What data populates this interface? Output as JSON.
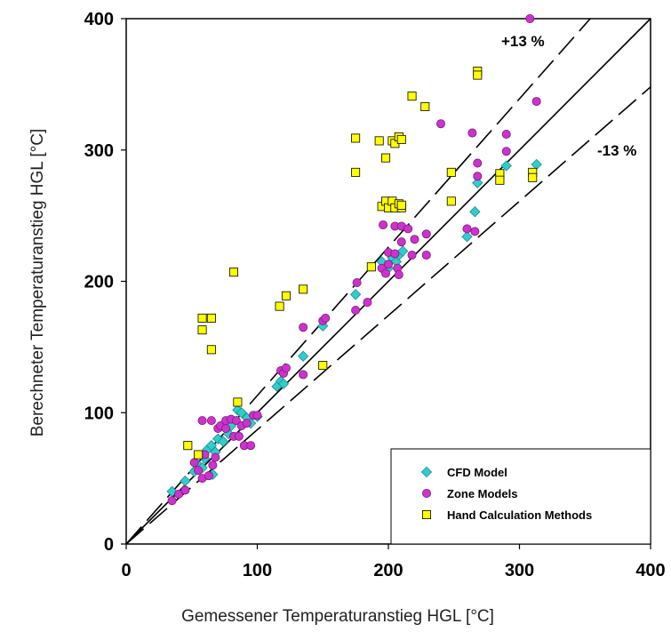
{
  "chart_data": {
    "type": "scatter",
    "xlabel": "Gemessener Temperaturanstieg HGL [°C]",
    "ylabel": "Berechneter Temperaturanstieg HGL [°C]",
    "xlim": [
      0,
      400
    ],
    "ylim": [
      0,
      400
    ],
    "xticks": [
      "0",
      "100",
      "200",
      "300",
      "400"
    ],
    "yticks": [
      "0",
      "100",
      "200",
      "300",
      "400"
    ],
    "grid": false,
    "legend_position": "bottom-right",
    "annotations": [
      {
        "text": "+13 %",
        "line_slope": 1.13
      },
      {
        "text": "-13 %",
        "line_slope": 0.87
      }
    ],
    "reference_lines": [
      {
        "slope": 1.0,
        "style": "solid"
      },
      {
        "slope": 1.13,
        "style": "dashed"
      },
      {
        "slope": 0.87,
        "style": "dashed"
      }
    ],
    "series": [
      {
        "name": "CFD Model",
        "marker": "diamond",
        "color": "#33cccc",
        "points": [
          [
            35,
            40
          ],
          [
            45,
            48
          ],
          [
            52,
            55
          ],
          [
            55,
            60
          ],
          [
            58,
            58
          ],
          [
            60,
            65
          ],
          [
            62,
            72
          ],
          [
            65,
            75
          ],
          [
            66,
            53
          ],
          [
            68,
            70
          ],
          [
            70,
            80
          ],
          [
            74,
            78
          ],
          [
            78,
            84
          ],
          [
            80,
            90
          ],
          [
            85,
            102
          ],
          [
            88,
            100
          ],
          [
            92,
            96
          ],
          [
            95,
            92
          ],
          [
            100,
            97
          ],
          [
            115,
            120
          ],
          [
            118,
            124
          ],
          [
            120,
            122
          ],
          [
            135,
            143
          ],
          [
            150,
            166
          ],
          [
            175,
            190
          ],
          [
            195,
            215
          ],
          [
            200,
            210
          ],
          [
            203,
            218
          ],
          [
            206,
            215
          ],
          [
            208,
            220
          ],
          [
            211,
            223
          ],
          [
            260,
            234
          ],
          [
            266,
            253
          ],
          [
            268,
            275
          ],
          [
            290,
            288
          ],
          [
            313,
            289
          ]
        ]
      },
      {
        "name": "Zone Models",
        "marker": "circle",
        "color": "#cc33cc",
        "points": [
          [
            35,
            33
          ],
          [
            40,
            38
          ],
          [
            45,
            41
          ],
          [
            52,
            62
          ],
          [
            55,
            56
          ],
          [
            58,
            50
          ],
          [
            58,
            94
          ],
          [
            60,
            68
          ],
          [
            63,
            52
          ],
          [
            65,
            94
          ],
          [
            66,
            60
          ],
          [
            68,
            66
          ],
          [
            70,
            88
          ],
          [
            72,
            90
          ],
          [
            76,
            88
          ],
          [
            76,
            94
          ],
          [
            80,
            95
          ],
          [
            82,
            82
          ],
          [
            84,
            94
          ],
          [
            86,
            82
          ],
          [
            88,
            90
          ],
          [
            90,
            75
          ],
          [
            92,
            92
          ],
          [
            95,
            75
          ],
          [
            97,
            98
          ],
          [
            100,
            98
          ],
          [
            118,
            132
          ],
          [
            120,
            130
          ],
          [
            122,
            134
          ],
          [
            135,
            129
          ],
          [
            135,
            165
          ],
          [
            150,
            170
          ],
          [
            152,
            172
          ],
          [
            175,
            178
          ],
          [
            176,
            199
          ],
          [
            184,
            184
          ],
          [
            195,
            210
          ],
          [
            196,
            243
          ],
          [
            198,
            206
          ],
          [
            200,
            213
          ],
          [
            200,
            222
          ],
          [
            205,
            221
          ],
          [
            205,
            242
          ],
          [
            207,
            210
          ],
          [
            208,
            205
          ],
          [
            210,
            230
          ],
          [
            210,
            242
          ],
          [
            215,
            240
          ],
          [
            218,
            220
          ],
          [
            220,
            232
          ],
          [
            229,
            236
          ],
          [
            229,
            220
          ],
          [
            240,
            320
          ],
          [
            260,
            240
          ],
          [
            264,
            313
          ],
          [
            266,
            238
          ],
          [
            268,
            290
          ],
          [
            268,
            280
          ],
          [
            290,
            312
          ],
          [
            290,
            299
          ],
          [
            308,
            400
          ],
          [
            313,
            337
          ]
        ]
      },
      {
        "name": "Hand Calculation Methods",
        "marker": "square",
        "color": "#ffff00",
        "points": [
          [
            47,
            75
          ],
          [
            55,
            68
          ],
          [
            58,
            163
          ],
          [
            58,
            172
          ],
          [
            65,
            172
          ],
          [
            65,
            148
          ],
          [
            82,
            207
          ],
          [
            85,
            108
          ],
          [
            117,
            181
          ],
          [
            122,
            189
          ],
          [
            135,
            194
          ],
          [
            150,
            136
          ],
          [
            175,
            309
          ],
          [
            175,
            283
          ],
          [
            187,
            211
          ],
          [
            193,
            307
          ],
          [
            195,
            257
          ],
          [
            198,
            294
          ],
          [
            198,
            261
          ],
          [
            200,
            256
          ],
          [
            203,
            307
          ],
          [
            203,
            261
          ],
          [
            205,
            305
          ],
          [
            205,
            256
          ],
          [
            208,
            310
          ],
          [
            208,
            259
          ],
          [
            210,
            308
          ],
          [
            210,
            256
          ],
          [
            210,
            258
          ],
          [
            218,
            341
          ],
          [
            228,
            333
          ],
          [
            248,
            283
          ],
          [
            248,
            261
          ],
          [
            268,
            360
          ],
          [
            268,
            357
          ],
          [
            285,
            282
          ],
          [
            285,
            277
          ],
          [
            310,
            283
          ],
          [
            310,
            279
          ]
        ]
      }
    ]
  }
}
